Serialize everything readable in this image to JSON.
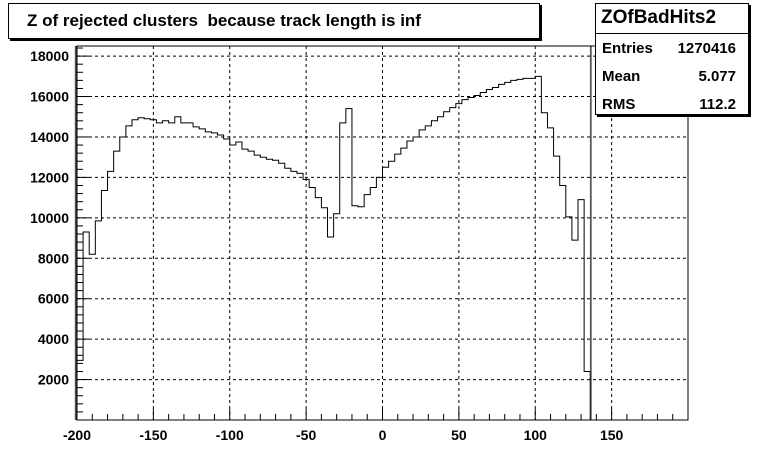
{
  "title": "Z of rejected clusters  because track length is inf",
  "stats": {
    "name": "ZOfBadHits2",
    "rows": [
      {
        "label": "Entries",
        "value": "1270416"
      },
      {
        "label": "Mean",
        "value": "5.077"
      },
      {
        "label": "RMS",
        "value": "112.2"
      }
    ]
  },
  "chart_data": {
    "type": "histogram",
    "title": "Z of rejected clusters  because track length is inf",
    "xlabel": "",
    "ylabel": "",
    "xlim": [
      -200,
      200
    ],
    "ylim": [
      0,
      18500
    ],
    "grid": true,
    "x_ticks": [
      -200,
      -150,
      -100,
      -50,
      0,
      50,
      100,
      150
    ],
    "y_ticks": [
      2000,
      4000,
      6000,
      8000,
      10000,
      12000,
      14000,
      16000,
      18000
    ],
    "bin_width": 4,
    "bin_edges_start": -200,
    "values": [
      2950,
      9300,
      8200,
      9850,
      11350,
      12300,
      13300,
      14000,
      14550,
      14850,
      14950,
      14900,
      14850,
      14700,
      14800,
      14700,
      15000,
      14700,
      14700,
      14500,
      14400,
      14250,
      14200,
      14100,
      13900,
      13600,
      13750,
      13400,
      13300,
      13100,
      13000,
      12900,
      12850,
      12700,
      12450,
      12300,
      12200,
      11900,
      11500,
      11000,
      10500,
      9050,
      10200,
      14700,
      15400,
      10600,
      10550,
      11150,
      11500,
      12000,
      12500,
      12800,
      13150,
      13450,
      13800,
      14000,
      14350,
      14550,
      14800,
      15000,
      15250,
      15450,
      15650,
      15850,
      15950,
      16050,
      16200,
      16350,
      16450,
      16600,
      16700,
      16800,
      16850,
      16900,
      16900,
      17000,
      15200,
      14450,
      13050,
      11600,
      10050,
      8900,
      10900,
      2400
    ],
    "hatched_columns_top": 18500
  }
}
